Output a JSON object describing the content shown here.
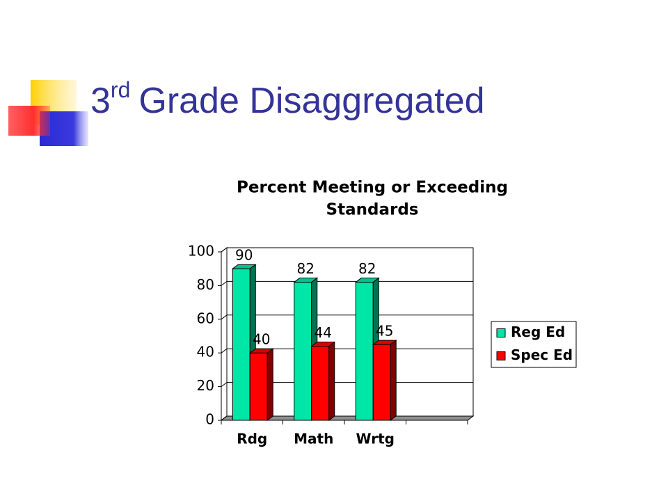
{
  "slide": {
    "title_number": "3",
    "title_suffix": "rd",
    "title_rest": "Grade Disaggregated"
  },
  "chart_data": {
    "type": "bar3d",
    "title": [
      "Percent Meeting or Exceeding",
      "Standards"
    ],
    "categories": [
      "Rdg",
      "Math",
      "Wrtg",
      null
    ],
    "series": [
      {
        "name": "Reg Ed",
        "color": "#00e6a6",
        "values": [
          90,
          82,
          82,
          null
        ]
      },
      {
        "name": "Spec Ed",
        "color": "#ff0000",
        "values": [
          40,
          44,
          45,
          null
        ]
      }
    ],
    "ylim": [
      0,
      100
    ],
    "yticks": [
      0,
      20,
      40,
      60,
      80,
      100
    ],
    "grid": true,
    "legend": "right"
  }
}
